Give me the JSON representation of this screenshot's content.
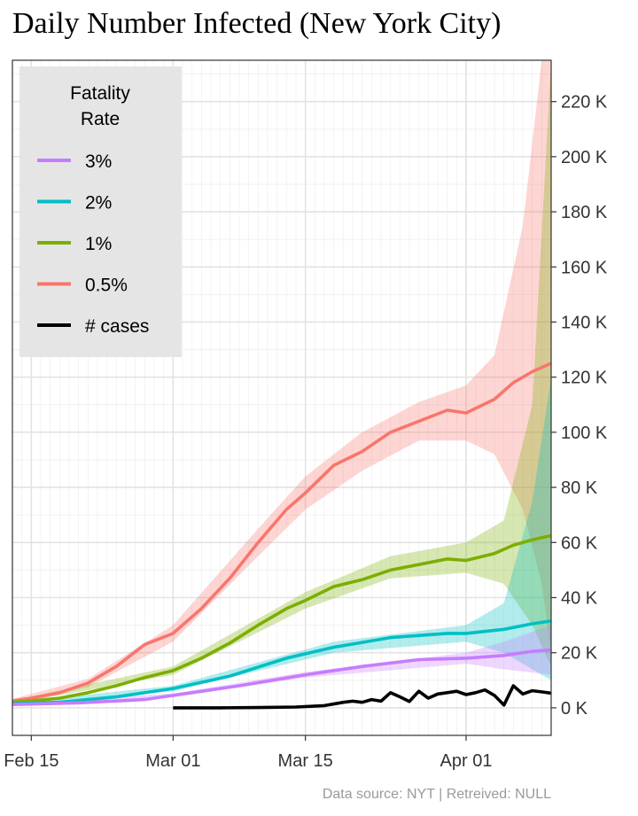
{
  "title": "Daily Number Infected (New York City)",
  "caption": "Data source: NYT  |  Retreived: NULL",
  "chart_data": {
    "type": "line",
    "title": "Daily Number Infected (New York City)",
    "xlabel": "",
    "ylabel": "",
    "x_axis": {
      "type": "date",
      "range": [
        "2020-02-13",
        "2020-04-10"
      ],
      "ticks": [
        "2020-02-15",
        "2020-03-01",
        "2020-03-15",
        "2020-04-01"
      ],
      "tick_labels": [
        "Feb 15",
        "Mar 01",
        "Mar 15",
        "Apr 01"
      ]
    },
    "y_axis": {
      "position": "right",
      "range": [
        -10000,
        235000
      ],
      "ticks": [
        0,
        20000,
        40000,
        60000,
        80000,
        100000,
        120000,
        140000,
        160000,
        180000,
        200000,
        220000
      ],
      "tick_labels": [
        "0 K",
        "20 K",
        "40 K",
        "60 K",
        "80 K",
        "100 K",
        "120 K",
        "140 K",
        "160 K",
        "180 K",
        "200 K",
        "220 K"
      ]
    },
    "grid": true,
    "legend": {
      "title": "Fatality\nRate",
      "position": "top-left",
      "entries": [
        {
          "label": "3%",
          "color": "#c77cff"
        },
        {
          "label": "2%",
          "color": "#00bfc4"
        },
        {
          "label": "1%",
          "color": "#7cae00"
        },
        {
          "label": "0.5%",
          "color": "#f8766d"
        },
        {
          "label": "# cases",
          "color": "#000000"
        }
      ]
    },
    "series": [
      {
        "name": "0.5%",
        "color": "#f8766d",
        "points": [
          [
            "2020-02-13",
            2500
          ],
          [
            "2020-02-15",
            3500
          ],
          [
            "2020-02-18",
            5500
          ],
          [
            "2020-02-21",
            9000
          ],
          [
            "2020-02-24",
            15000
          ],
          [
            "2020-02-27",
            23000
          ],
          [
            "2020-03-01",
            27000
          ],
          [
            "2020-03-04",
            36000
          ],
          [
            "2020-03-07",
            47000
          ],
          [
            "2020-03-10",
            60000
          ],
          [
            "2020-03-13",
            72000
          ],
          [
            "2020-03-15",
            78000
          ],
          [
            "2020-03-18",
            88000
          ],
          [
            "2020-03-21",
            93000
          ],
          [
            "2020-03-24",
            100000
          ],
          [
            "2020-03-27",
            104000
          ],
          [
            "2020-03-30",
            108000
          ],
          [
            "2020-04-01",
            107000
          ],
          [
            "2020-04-04",
            112000
          ],
          [
            "2020-04-06",
            118000
          ],
          [
            "2020-04-08",
            122000
          ],
          [
            "2020-04-10",
            125000
          ]
        ],
        "band": [
          [
            "2020-02-13",
            1800,
            3200
          ],
          [
            "2020-02-21",
            7500,
            10500
          ],
          [
            "2020-03-01",
            24000,
            30000
          ],
          [
            "2020-03-10",
            55000,
            65000
          ],
          [
            "2020-03-15",
            72000,
            84000
          ],
          [
            "2020-03-21",
            86000,
            100000
          ],
          [
            "2020-03-27",
            97000,
            111000
          ],
          [
            "2020-04-01",
            97000,
            117000
          ],
          [
            "2020-04-04",
            92000,
            128000
          ],
          [
            "2020-04-07",
            72000,
            175000
          ],
          [
            "2020-04-09",
            45000,
            235000
          ],
          [
            "2020-04-10",
            20000,
            235000
          ]
        ]
      },
      {
        "name": "1%",
        "color": "#7cae00",
        "points": [
          [
            "2020-02-13",
            2000
          ],
          [
            "2020-02-15",
            2500
          ],
          [
            "2020-02-18",
            3500
          ],
          [
            "2020-02-21",
            5500
          ],
          [
            "2020-02-24",
            8000
          ],
          [
            "2020-02-27",
            11000
          ],
          [
            "2020-03-01",
            13500
          ],
          [
            "2020-03-04",
            18000
          ],
          [
            "2020-03-07",
            23500
          ],
          [
            "2020-03-10",
            30000
          ],
          [
            "2020-03-13",
            36000
          ],
          [
            "2020-03-15",
            39000
          ],
          [
            "2020-03-18",
            44000
          ],
          [
            "2020-03-21",
            46500
          ],
          [
            "2020-03-24",
            50000
          ],
          [
            "2020-03-27",
            52000
          ],
          [
            "2020-03-30",
            54000
          ],
          [
            "2020-04-01",
            53500
          ],
          [
            "2020-04-04",
            56000
          ],
          [
            "2020-04-06",
            59000
          ],
          [
            "2020-04-08",
            61000
          ],
          [
            "2020-04-10",
            62500
          ]
        ],
        "band": [
          [
            "2020-02-13",
            1500,
            2600
          ],
          [
            "2020-03-01",
            12000,
            15000
          ],
          [
            "2020-03-15",
            36000,
            42000
          ],
          [
            "2020-03-24",
            47000,
            55000
          ],
          [
            "2020-04-01",
            49000,
            60000
          ],
          [
            "2020-04-05",
            45000,
            68000
          ],
          [
            "2020-04-08",
            30000,
            110000
          ],
          [
            "2020-04-10",
            15000,
            235000
          ]
        ]
      },
      {
        "name": "2%",
        "color": "#00bfc4",
        "points": [
          [
            "2020-02-13",
            1500
          ],
          [
            "2020-02-18",
            2000
          ],
          [
            "2020-02-24",
            4000
          ],
          [
            "2020-03-01",
            7000
          ],
          [
            "2020-03-07",
            11500
          ],
          [
            "2020-03-13",
            18000
          ],
          [
            "2020-03-18",
            22000
          ],
          [
            "2020-03-24",
            25500
          ],
          [
            "2020-03-30",
            27000
          ],
          [
            "2020-04-01",
            27000
          ],
          [
            "2020-04-05",
            28500
          ],
          [
            "2020-04-08",
            30500
          ],
          [
            "2020-04-10",
            31500
          ]
        ],
        "band": [
          [
            "2020-02-13",
            1000,
            2000
          ],
          [
            "2020-03-01",
            6000,
            8000
          ],
          [
            "2020-03-18",
            20000,
            24000
          ],
          [
            "2020-04-01",
            24000,
            30000
          ],
          [
            "2020-04-05",
            20000,
            38000
          ],
          [
            "2020-04-08",
            14000,
            75000
          ],
          [
            "2020-04-10",
            10000,
            120000
          ]
        ]
      },
      {
        "name": "3%",
        "color": "#c77cff",
        "points": [
          [
            "2020-02-13",
            1200
          ],
          [
            "2020-02-20",
            1800
          ],
          [
            "2020-02-27",
            3000
          ],
          [
            "2020-03-01",
            4500
          ],
          [
            "2020-03-08",
            8000
          ],
          [
            "2020-03-15",
            12000
          ],
          [
            "2020-03-21",
            15000
          ],
          [
            "2020-03-27",
            17500
          ],
          [
            "2020-04-01",
            18000
          ],
          [
            "2020-04-05",
            19000
          ],
          [
            "2020-04-08",
            20500
          ],
          [
            "2020-04-10",
            21000
          ]
        ],
        "band": [
          [
            "2020-02-13",
            800,
            1600
          ],
          [
            "2020-03-01",
            3800,
            5200
          ],
          [
            "2020-03-15",
            11000,
            13000
          ],
          [
            "2020-04-01",
            16000,
            20000
          ],
          [
            "2020-04-05",
            14000,
            24000
          ],
          [
            "2020-04-10",
            12000,
            30000
          ]
        ]
      },
      {
        "name": "# cases",
        "color": "#000000",
        "points": [
          [
            "2020-03-01",
            0
          ],
          [
            "2020-03-06",
            0
          ],
          [
            "2020-03-10",
            100
          ],
          [
            "2020-03-14",
            300
          ],
          [
            "2020-03-17",
            800
          ],
          [
            "2020-03-19",
            2000
          ],
          [
            "2020-03-20",
            2400
          ],
          [
            "2020-03-21",
            2000
          ],
          [
            "2020-03-22",
            3000
          ],
          [
            "2020-03-23",
            2400
          ],
          [
            "2020-03-24",
            5500
          ],
          [
            "2020-03-25",
            4000
          ],
          [
            "2020-03-26",
            2300
          ],
          [
            "2020-03-27",
            6000
          ],
          [
            "2020-03-28",
            3500
          ],
          [
            "2020-03-29",
            5000
          ],
          [
            "2020-03-30",
            5500
          ],
          [
            "2020-03-31",
            6000
          ],
          [
            "2020-04-01",
            4800
          ],
          [
            "2020-04-02",
            5500
          ],
          [
            "2020-04-03",
            6500
          ],
          [
            "2020-04-04",
            4500
          ],
          [
            "2020-04-05",
            1000
          ],
          [
            "2020-04-06",
            8000
          ],
          [
            "2020-04-07",
            5000
          ],
          [
            "2020-04-08",
            6200
          ],
          [
            "2020-04-09",
            5800
          ],
          [
            "2020-04-10",
            5300
          ]
        ]
      }
    ]
  }
}
